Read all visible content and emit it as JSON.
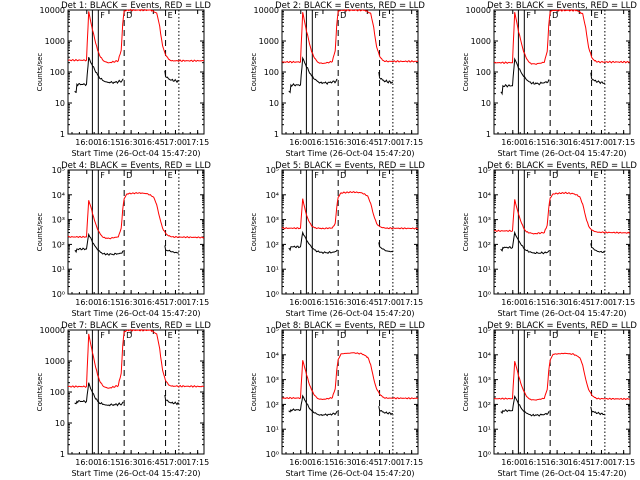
{
  "chart_data": {
    "type": "line",
    "yscale": "log",
    "xlabel": "Start Time (26-Oct-04 15:47:20)",
    "ylabel": "Counts/sec",
    "x_tick_labels": [
      "16:00",
      "16:15",
      "16:30",
      "16:45",
      "17:00",
      "17:15"
    ],
    "x_range_min": [
      0,
      92
    ],
    "x_tick_min": [
      12.7,
      27.7,
      42.7,
      57.7,
      72.7,
      87.7
    ],
    "vlines_min": [
      {
        "x": 16.5,
        "style": "solid"
      },
      {
        "x": 20.5,
        "style": "solid"
      },
      {
        "x": 38.0,
        "style": "dashed"
      },
      {
        "x": 66.0,
        "style": "dashed"
      },
      {
        "x": 75.0,
        "style": "dotted"
      }
    ],
    "markers": [
      {
        "x": 20.5,
        "label": "F"
      },
      {
        "x": 38.0,
        "label": "D"
      },
      {
        "x": 66.0,
        "label": "E"
      }
    ],
    "series_colors": {
      "events": "#000000",
      "lld": "#ff0000"
    },
    "panels": [
      {
        "title": "Det 1: BLACK = Events, RED = LLD",
        "yscale": "log",
        "y_tick_labels": [
          "1",
          "10",
          "100",
          "1000",
          "10000"
        ],
        "ylim": [
          1,
          10000
        ],
        "lld": {
          "x": [
            0,
            12.5,
            14,
            16,
            18,
            20,
            22,
            24,
            26,
            28,
            34,
            36,
            37,
            38,
            40,
            56,
            60,
            62,
            64,
            66,
            68,
            70,
            92
          ],
          "y": [
            240,
            240,
            9000,
            3000,
            1200,
            500,
            300,
            230,
            210,
            200,
            230,
            500,
            3500,
            9500,
            9900,
            9900,
            8000,
            3000,
            700,
            350,
            260,
            230,
            230
          ]
        },
        "events": {
          "x": [
            4.5,
            5.5,
            6,
            12.5,
            14,
            16,
            18,
            20,
            22,
            24,
            26,
            30,
            34,
            36.5,
            37.5,
            38,
            65,
            65.5,
            66,
            68,
            70,
            75
          ],
          "y": [
            24,
            22,
            40,
            40,
            300,
            180,
            120,
            80,
            60,
            52,
            48,
            45,
            48,
            52,
            60,
            null,
            null,
            110,
            70,
            60,
            55,
            50
          ]
        }
      },
      {
        "title": "Det 2: BLACK = Events, RED = LLD",
        "yscale": "log",
        "y_tick_labels": [
          "1",
          "10",
          "100",
          "1000",
          "10000"
        ],
        "ylim": [
          1,
          10000
        ],
        "lld": {
          "x": [
            0,
            12.5,
            14,
            16,
            18,
            20,
            22,
            24,
            26,
            28,
            34,
            36,
            37,
            38,
            40,
            56,
            60,
            62,
            64,
            66,
            68,
            70,
            92
          ],
          "y": [
            210,
            210,
            8500,
            2800,
            1100,
            450,
            280,
            210,
            195,
            190,
            215,
            480,
            3200,
            9200,
            9800,
            9800,
            7800,
            2800,
            650,
            320,
            240,
            220,
            220
          ]
        },
        "events": {
          "x": [
            4.5,
            5.5,
            6,
            12.5,
            14,
            16,
            18,
            20,
            22,
            24,
            26,
            30,
            34,
            36.5,
            37.5,
            38,
            65,
            65.5,
            66,
            68,
            70,
            75
          ],
          "y": [
            24,
            22,
            38,
            38,
            280,
            170,
            110,
            75,
            58,
            50,
            46,
            44,
            47,
            50,
            58,
            null,
            null,
            100,
            65,
            55,
            50,
            46
          ]
        }
      },
      {
        "title": "Det 3: BLACK = Events, RED = LLD",
        "yscale": "log",
        "y_tick_labels": [
          "1",
          "10",
          "100",
          "1000",
          "10000"
        ],
        "ylim": [
          1,
          10000
        ],
        "lld": {
          "x": [
            0,
            12.5,
            14,
            16,
            18,
            20,
            22,
            24,
            26,
            28,
            34,
            36,
            37,
            38,
            40,
            56,
            60,
            62,
            64,
            66,
            68,
            70,
            92
          ],
          "y": [
            200,
            200,
            8500,
            2800,
            1100,
            450,
            270,
            200,
            185,
            180,
            205,
            460,
            3100,
            9000,
            9700,
            9700,
            7600,
            2700,
            620,
            300,
            230,
            210,
            210
          ]
        },
        "events": {
          "x": [
            4.5,
            5.5,
            6,
            12.5,
            14,
            16,
            18,
            20,
            22,
            24,
            26,
            30,
            34,
            36.5,
            37.5,
            38,
            65,
            65.5,
            66,
            68,
            70,
            75
          ],
          "y": [
            22,
            20,
            36,
            36,
            260,
            160,
            105,
            72,
            56,
            48,
            44,
            42,
            45,
            48,
            55,
            null,
            null,
            95,
            62,
            52,
            48,
            44
          ]
        }
      },
      {
        "title": "Det 4: BLACK = Events, RED = LLD",
        "yscale": "log",
        "y_tick_labels": [
          "10⁰",
          "10¹",
          "10²",
          "10³",
          "10⁴",
          "10⁵"
        ],
        "ylim": [
          1,
          100000
        ],
        "lld": {
          "x": [
            0,
            12.5,
            14,
            16,
            18,
            20,
            22,
            24,
            26,
            28,
            34,
            36,
            37,
            38,
            40,
            48,
            54,
            58,
            60,
            62,
            64,
            66,
            68,
            70,
            92
          ],
          "y": [
            200,
            200,
            6000,
            2500,
            900,
            400,
            250,
            190,
            180,
            175,
            200,
            450,
            2500,
            7000,
            11000,
            12000,
            11000,
            8000,
            4000,
            1200,
            450,
            280,
            220,
            200,
            190
          ]
        },
        "events": {
          "x": [
            4.5,
            5.5,
            6,
            12.5,
            14,
            16,
            18,
            20,
            22,
            24,
            26,
            30,
            34,
            36.5,
            37.5,
            38,
            65,
            65.5,
            66,
            68,
            70,
            75
          ],
          "y": [
            55,
            50,
            65,
            65,
            250,
            150,
            90,
            60,
            48,
            42,
            40,
            40,
            42,
            45,
            55,
            null,
            null,
            90,
            60,
            55,
            50,
            45
          ]
        }
      },
      {
        "title": "Det 5: BLACK = Events, RED = LLD",
        "yscale": "log",
        "y_tick_labels": [
          "10⁰",
          "10¹",
          "10²",
          "10³",
          "10⁴",
          "10⁵"
        ],
        "ylim": [
          1,
          100000
        ],
        "lld": {
          "x": [
            0,
            12.5,
            14,
            16,
            18,
            20,
            22,
            24,
            26,
            28,
            34,
            36,
            37,
            38,
            40,
            48,
            54,
            58,
            60,
            62,
            64,
            66,
            68,
            70,
            92
          ],
          "y": [
            450,
            450,
            7000,
            2000,
            900,
            550,
            470,
            450,
            445,
            440,
            460,
            700,
            3000,
            8000,
            12000,
            13000,
            12000,
            9000,
            4500,
            1500,
            700,
            520,
            470,
            450,
            440
          ]
        },
        "events": {
          "x": [
            4.5,
            5.5,
            6,
            12.5,
            14,
            16,
            18,
            20,
            22,
            24,
            26,
            30,
            34,
            36.5,
            37.5,
            38,
            65,
            65.5,
            66,
            68,
            70,
            75
          ],
          "y": [
            70,
            60,
            80,
            80,
            300,
            180,
            110,
            75,
            60,
            52,
            48,
            46,
            48,
            52,
            60,
            null,
            null,
            120,
            80,
            65,
            55,
            50
          ]
        }
      },
      {
        "title": "Det 6: BLACK = Events, RED = LLD",
        "yscale": "log",
        "y_tick_labels": [
          "10⁰",
          "10¹",
          "10²",
          "10³",
          "10⁴",
          "10⁵"
        ],
        "ylim": [
          1,
          100000
        ],
        "lld": {
          "x": [
            0,
            12.5,
            14,
            16,
            18,
            20,
            22,
            24,
            26,
            28,
            34,
            36,
            37,
            38,
            40,
            48,
            54,
            58,
            60,
            62,
            64,
            66,
            68,
            70,
            92
          ],
          "y": [
            350,
            350,
            6500,
            2200,
            900,
            450,
            320,
            290,
            280,
            275,
            300,
            600,
            2800,
            7500,
            11000,
            12000,
            11000,
            8500,
            4200,
            1300,
            550,
            380,
            330,
            310,
            290
          ]
        },
        "events": {
          "x": [
            4.5,
            5.5,
            6,
            12.5,
            14,
            16,
            18,
            20,
            22,
            24,
            26,
            30,
            34,
            36.5,
            37.5,
            38,
            65,
            65.5,
            66,
            68,
            70,
            75
          ],
          "y": [
            65,
            55,
            75,
            75,
            300,
            170,
            105,
            70,
            56,
            50,
            46,
            44,
            46,
            50,
            58,
            null,
            null,
            110,
            75,
            60,
            52,
            48
          ]
        }
      },
      {
        "title": "Det 7: BLACK = Events, RED = LLD",
        "yscale": "log",
        "y_tick_labels": [
          "1",
          "10",
          "100",
          "1000",
          "10000"
        ],
        "ylim": [
          1,
          10000
        ],
        "lld": {
          "x": [
            0,
            12.5,
            14,
            16,
            18,
            20,
            22,
            24,
            26,
            28,
            34,
            36,
            37,
            38,
            40,
            56,
            60,
            62,
            64,
            66,
            68,
            70,
            92
          ],
          "y": [
            150,
            150,
            7500,
            2500,
            900,
            350,
            200,
            150,
            140,
            135,
            160,
            400,
            3000,
            9000,
            9800,
            9800,
            7500,
            2500,
            500,
            230,
            170,
            155,
            150
          ]
        },
        "events": {
          "x": [
            4.5,
            5.5,
            6,
            12.5,
            14,
            16,
            18,
            20,
            22,
            24,
            26,
            30,
            34,
            36.5,
            37.5,
            38,
            65,
            65.5,
            66,
            68,
            70,
            75
          ],
          "y": [
            45,
            42,
            50,
            50,
            200,
            110,
            70,
            50,
            42,
            40,
            38,
            38,
            40,
            42,
            48,
            null,
            null,
            80,
            55,
            48,
            45,
            42
          ]
        }
      },
      {
        "title": "Det 8: BLACK = Events, RED = LLD",
        "yscale": "log",
        "y_tick_labels": [
          "10⁰",
          "10¹",
          "10²",
          "10³",
          "10⁴",
          "10⁵"
        ],
        "ylim": [
          1,
          100000
        ],
        "lld": {
          "x": [
            0,
            12.5,
            14,
            16,
            18,
            20,
            22,
            24,
            26,
            28,
            34,
            36,
            37,
            38,
            40,
            48,
            54,
            58,
            60,
            62,
            64,
            66,
            68,
            70,
            92
          ],
          "y": [
            180,
            180,
            6000,
            2200,
            800,
            380,
            230,
            175,
            165,
            160,
            185,
            420,
            2300,
            6500,
            11000,
            12000,
            11000,
            8000,
            4000,
            1100,
            420,
            260,
            200,
            180,
            175
          ]
        },
        "events": {
          "x": [
            4.5,
            5.5,
            6,
            12.5,
            14,
            16,
            18,
            20,
            22,
            24,
            26,
            30,
            34,
            36.5,
            37.5,
            38,
            65,
            65.5,
            66,
            68,
            70,
            75
          ],
          "y": [
            55,
            50,
            60,
            60,
            220,
            130,
            80,
            55,
            45,
            40,
            38,
            38,
            40,
            44,
            52,
            null,
            null,
            85,
            58,
            50,
            46,
            42
          ]
        }
      },
      {
        "title": "Det 9: BLACK = Events, RED = LLD",
        "yscale": "log",
        "y_tick_labels": [
          "10⁰",
          "10¹",
          "10²",
          "10³",
          "10⁴",
          "10⁵"
        ],
        "ylim": [
          1,
          100000
        ],
        "lld": {
          "x": [
            0,
            12.5,
            14,
            16,
            18,
            20,
            22,
            24,
            26,
            28,
            34,
            36,
            37,
            38,
            40,
            48,
            54,
            58,
            60,
            62,
            64,
            66,
            68,
            70,
            92
          ],
          "y": [
            170,
            170,
            5500,
            2000,
            750,
            350,
            210,
            165,
            155,
            150,
            175,
            400,
            2200,
            6200,
            10500,
            11500,
            10500,
            7800,
            3800,
            1050,
            400,
            240,
            190,
            170,
            165
          ]
        },
        "events": {
          "x": [
            4.5,
            5.5,
            6,
            12.5,
            14,
            16,
            18,
            20,
            22,
            24,
            26,
            30,
            34,
            36.5,
            37.5,
            38,
            65,
            65.5,
            66,
            68,
            70,
            75
          ],
          "y": [
            50,
            45,
            56,
            56,
            210,
            125,
            78,
            53,
            44,
            39,
            37,
            37,
            39,
            43,
            50,
            null,
            null,
            80,
            55,
            48,
            44,
            40
          ]
        }
      }
    ]
  }
}
